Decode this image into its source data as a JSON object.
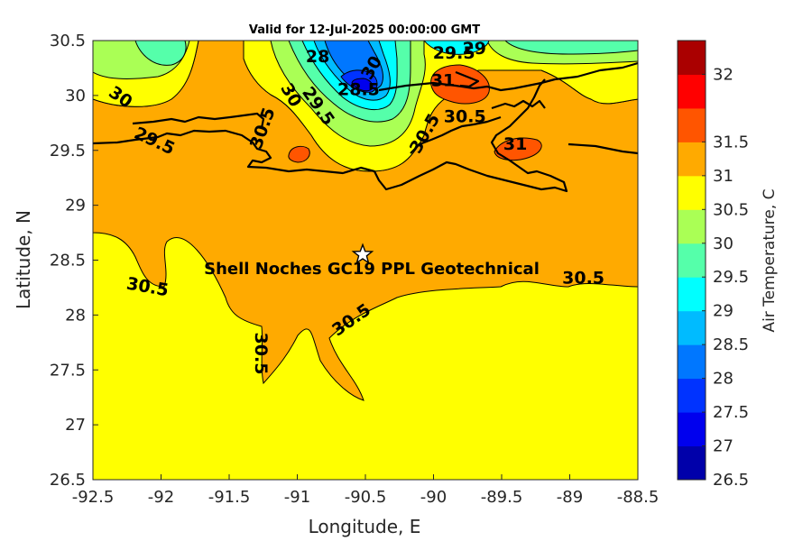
{
  "title": "Valid for 12-Jul-2025 00:00:00 GMT",
  "map": {
    "xlabel": "Longitude, E",
    "ylabel": "Latitude, N",
    "xlim": [
      -92.5,
      -88.5
    ],
    "ylim": [
      26.5,
      30.5
    ],
    "xticks": [
      "-92.5",
      "-92",
      "-91.5",
      "-91",
      "-90.5",
      "-90",
      "-89.5",
      "-89",
      "-88.5"
    ],
    "yticks": [
      "26.5",
      "27",
      "27.5",
      "28",
      "28.5",
      "29",
      "29.5",
      "30",
      "30.5"
    ],
    "site": {
      "label": "Shell Noches   GC19 PPL  Geotechnical",
      "lon": -90.52,
      "lat": 28.55
    },
    "contour_labels": [
      {
        "text": "30",
        "lon": -92.3,
        "lat": 29.98,
        "rot": 35
      },
      {
        "text": "29.5",
        "lon": -92.05,
        "lat": 29.58,
        "rot": 25
      },
      {
        "text": "30.5",
        "lon": -91.25,
        "lat": 29.7,
        "rot": -70
      },
      {
        "text": "30",
        "lon": -91.05,
        "lat": 30.0,
        "rot": 60
      },
      {
        "text": "29.5",
        "lon": -90.85,
        "lat": 29.9,
        "rot": 55
      },
      {
        "text": "28",
        "lon": -90.85,
        "lat": 30.35,
        "rot": 0
      },
      {
        "text": "28.5",
        "lon": -90.55,
        "lat": 30.05,
        "rot": 0
      },
      {
        "text": "30",
        "lon": -90.45,
        "lat": 30.25,
        "rot": -60
      },
      {
        "text": "29.5",
        "lon": -89.85,
        "lat": 30.38,
        "rot": 0
      },
      {
        "text": "29",
        "lon": -89.7,
        "lat": 30.42,
        "rot": 0
      },
      {
        "text": "31",
        "lon": -89.93,
        "lat": 30.13,
        "rot": 0
      },
      {
        "text": "30.5",
        "lon": -89.77,
        "lat": 29.8,
        "rot": 0
      },
      {
        "text": "30.5",
        "lon": -90.06,
        "lat": 29.65,
        "rot": -60
      },
      {
        "text": "31",
        "lon": -89.4,
        "lat": 29.55,
        "rot": 0
      },
      {
        "text": "30.5",
        "lon": -92.1,
        "lat": 28.25,
        "rot": 10
      },
      {
        "text": "30.5",
        "lon": -91.27,
        "lat": 27.65,
        "rot": 90
      },
      {
        "text": "30.5",
        "lon": -90.6,
        "lat": 27.95,
        "rot": -35
      },
      {
        "text": "30.5",
        "lon": -88.9,
        "lat": 28.33,
        "rot": 0
      }
    ]
  },
  "colorbar": {
    "label": "Air Temperature, C",
    "ticks": [
      "26.5",
      "27",
      "27.5",
      "28",
      "28.5",
      "29",
      "29.5",
      "30",
      "30.5",
      "31",
      "31.5",
      "32"
    ],
    "colors": [
      "#0000aa",
      "#0000ee",
      "#0033ff",
      "#0077ff",
      "#00bbff",
      "#00ffff",
      "#55ffaa",
      "#aaff55",
      "#ffff00",
      "#ffaa00",
      "#ff5500",
      "#ff0000",
      "#aa0000"
    ]
  },
  "fields": {
    "yellow": "#ffff00",
    "orange": "#ffaa00",
    "red_orange": "#ff5500",
    "green": "#aaff55",
    "aqua_green": "#55ffaa",
    "cyan": "#00ffff",
    "light_blue": "#00bbff",
    "blue": "#0077ff",
    "deep_blue": "#0033ff",
    "navy": "#0000ee"
  }
}
